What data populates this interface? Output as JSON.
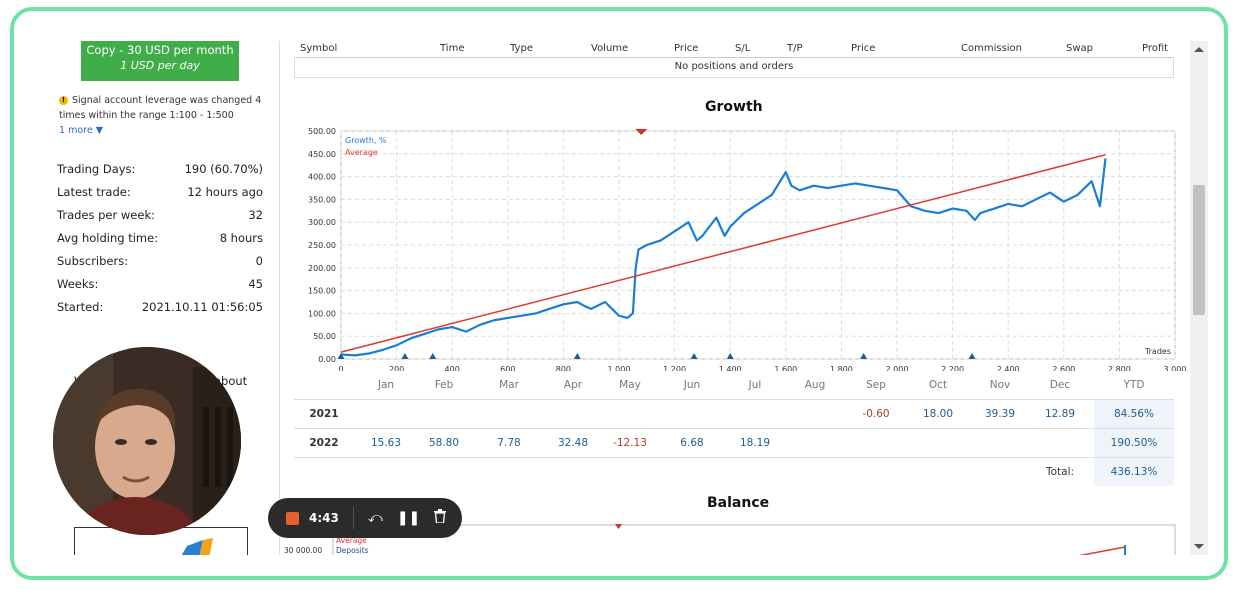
{
  "left_panel": {
    "copy_button": {
      "line1": "Copy - 30 USD per month",
      "line2": "1 USD per day"
    },
    "notice": {
      "text": "Signal account leverage was changed 4 times within the range 1:100 - 1:500",
      "more": "1 more ▼"
    },
    "stats": [
      {
        "label": "Trading Days:",
        "value": "190 (60.70%)"
      },
      {
        "label": "Latest trade:",
        "value": "12 hours ago"
      },
      {
        "label": "Trades per week:",
        "value": "32"
      },
      {
        "label": "Avg holding time:",
        "value": "8 hours"
      },
      {
        "label": "Subscribers:",
        "value": "0"
      },
      {
        "label": "Weeks:",
        "value": "45"
      },
      {
        "label": "Started:",
        "value": "2021.10.11 01:56:05"
      }
    ],
    "partial_text_right": "about",
    "partial_text_left": "W"
  },
  "positions_table": {
    "headers": [
      "Symbol",
      "Time",
      "Type",
      "Volume",
      "Price",
      "S/L",
      "T/P",
      "Price",
      "Commission",
      "Swap",
      "Profit"
    ],
    "empty_message": "No positions and orders"
  },
  "growth_chart": {
    "title": "Growth",
    "legend": [
      "Growth, %",
      "Average"
    ],
    "x_axis_label": "Trades"
  },
  "chart_data": [
    {
      "type": "line",
      "title": "Growth",
      "xlabel": "Trades",
      "ylabel": "",
      "xlim": [
        0,
        3000
      ],
      "ylim": [
        0,
        500
      ],
      "x_ticks": [
        0,
        200,
        400,
        600,
        800,
        1000,
        1200,
        1400,
        1600,
        1800,
        2000,
        2200,
        2400,
        2600,
        2800,
        3000
      ],
      "x_tick_labels": [
        "0",
        "200",
        "400",
        "600",
        "800",
        "1 000",
        "1 200",
        "1 400",
        "1 600",
        "1 800",
        "2 000",
        "2 200",
        "2 400",
        "2 600",
        "2 800",
        "3 000"
      ],
      "y_ticks": [
        0,
        50,
        100,
        150,
        200,
        250,
        300,
        350,
        400,
        450,
        500
      ],
      "y_tick_labels": [
        "0.00",
        "50.00",
        "100.00",
        "150.00",
        "200.00",
        "250.00",
        "300.00",
        "350.00",
        "400.00",
        "450.00",
        "500.00"
      ],
      "grid": true,
      "legend_position": "top-left",
      "series": [
        {
          "name": "Growth, %",
          "color": "#1a7ed4",
          "x": [
            0,
            50,
            100,
            150,
            200,
            250,
            300,
            350,
            400,
            450,
            500,
            550,
            600,
            650,
            700,
            750,
            800,
            850,
            880,
            900,
            950,
            1000,
            1030,
            1050,
            1060,
            1070,
            1100,
            1150,
            1200,
            1250,
            1280,
            1300,
            1350,
            1380,
            1400,
            1450,
            1500,
            1550,
            1600,
            1620,
            1650,
            1700,
            1750,
            1800,
            1850,
            1900,
            1950,
            2000,
            2050,
            2100,
            2150,
            2200,
            2250,
            2280,
            2300,
            2350,
            2400,
            2450,
            2500,
            2550,
            2600,
            2650,
            2700,
            2730,
            2750
          ],
          "y": [
            10,
            8,
            12,
            20,
            30,
            45,
            55,
            65,
            70,
            60,
            75,
            85,
            90,
            95,
            100,
            110,
            120,
            125,
            115,
            110,
            125,
            95,
            90,
            100,
            200,
            240,
            250,
            260,
            280,
            300,
            260,
            270,
            310,
            270,
            290,
            320,
            340,
            360,
            410,
            380,
            370,
            380,
            375,
            380,
            385,
            380,
            375,
            370,
            335,
            325,
            320,
            330,
            325,
            305,
            320,
            330,
            340,
            335,
            350,
            365,
            345,
            360,
            390,
            335,
            440
          ]
        },
        {
          "name": "Average",
          "color": "#e03a2e",
          "x": [
            0,
            2750
          ],
          "y": [
            15,
            448
          ]
        }
      ]
    },
    {
      "type": "table",
      "title": "Monthly returns",
      "columns": [
        "",
        "Jan",
        "Feb",
        "Mar",
        "Apr",
        "May",
        "Jun",
        "Jul",
        "Aug",
        "Sep",
        "Oct",
        "Nov",
        "Dec",
        "YTD"
      ],
      "rows": [
        {
          "year": "2021",
          "values": [
            "",
            "",
            "",
            "",
            "",
            "",
            "",
            "",
            "-0.60",
            "18.00",
            "39.39",
            "12.89"
          ],
          "ytd": "84.56%"
        },
        {
          "year": "2022",
          "values": [
            "15.63",
            "58.80",
            "7.78",
            "32.48",
            "-12.13",
            "6.68",
            "18.19",
            "",
            "",
            "",
            "",
            ""
          ],
          "ytd": "190.50%"
        }
      ],
      "total_label": "Total:",
      "total": "436.13%"
    }
  ],
  "balance_chart": {
    "title": "Balance",
    "legend": [
      "Average",
      "Deposits"
    ],
    "y_tick_visible": "30 000.00"
  },
  "recorder": {
    "time": "4:43"
  },
  "colors": {
    "accent_green": "#3fae49",
    "frame": "#6ee3a5",
    "growth_line": "#1a7ed4",
    "average_line": "#e03a2e"
  }
}
